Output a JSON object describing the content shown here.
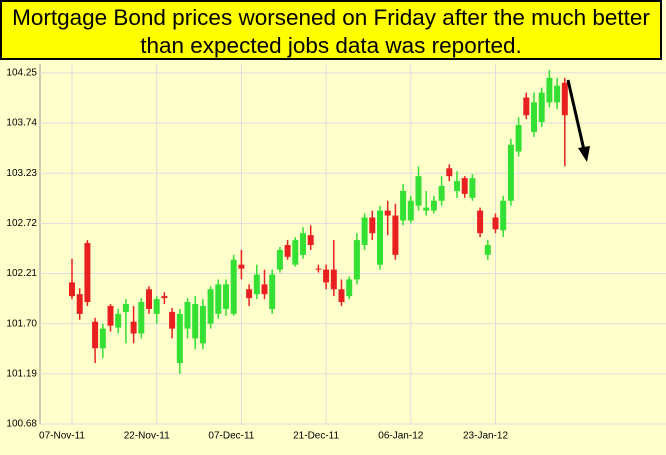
{
  "chart_data": {
    "type": "candlestick",
    "title": "Mortgage Bond prices worsened on Friday after the much better than expected jobs data was reported.",
    "categories": [
      "07-Nov-11",
      null,
      null,
      null,
      null,
      null,
      null,
      null,
      null,
      null,
      null,
      "22-Nov-11",
      null,
      null,
      null,
      null,
      null,
      null,
      null,
      null,
      null,
      null,
      "07-Dec-11",
      null,
      null,
      null,
      null,
      null,
      null,
      null,
      null,
      null,
      null,
      "21-Dec-11",
      null,
      null,
      null,
      null,
      null,
      null,
      null,
      null,
      null,
      null,
      "06-Jan-12",
      null,
      null,
      null,
      null,
      null,
      null,
      null,
      null,
      null,
      null,
      "23-Jan-12",
      null,
      null,
      null,
      null,
      null,
      null,
      null,
      null,
      null
    ],
    "open": [
      102.12,
      102.0,
      102.52,
      101.72,
      101.45,
      101.88,
      101.66,
      101.82,
      101.72,
      101.6,
      102.05,
      101.8,
      101.98,
      101.82,
      101.3,
      101.65,
      101.55,
      101.5,
      101.7,
      101.8,
      101.85,
      101.8,
      102.3,
      102.05,
      102.0,
      102.1,
      101.85,
      102.25,
      102.5,
      102.3,
      102.4,
      102.6,
      102.26,
      102.25,
      102.25,
      102.05,
      101.98,
      102.15,
      102.5,
      102.78,
      102.3,
      102.85,
      102.8,
      102.75,
      102.75,
      102.9,
      102.85,
      102.85,
      102.95,
      103.28,
      103.05,
      103.18,
      102.98,
      102.85,
      102.4,
      102.78,
      102.65,
      102.95,
      103.45,
      104.0,
      103.65,
      103.75,
      103.95,
      103.95,
      104.15
    ],
    "high": [
      102.36,
      102.06,
      102.55,
      101.76,
      101.7,
      101.9,
      101.85,
      101.95,
      101.88,
      101.96,
      102.08,
      101.98,
      102.02,
      101.86,
      101.85,
      101.96,
      101.98,
      101.95,
      102.08,
      102.15,
      102.15,
      102.4,
      102.45,
      102.1,
      102.3,
      102.25,
      102.25,
      102.48,
      102.55,
      102.58,
      102.68,
      102.7,
      102.3,
      102.3,
      102.55,
      102.15,
      102.18,
      102.62,
      102.82,
      102.85,
      102.9,
      102.95,
      102.92,
      103.12,
      103.0,
      103.3,
      103.05,
      103.0,
      103.2,
      103.32,
      103.25,
      103.2,
      103.22,
      102.88,
      102.55,
      102.82,
      103.0,
      103.58,
      103.8,
      104.05,
      104.05,
      104.1,
      104.28,
      104.2,
      104.2
    ],
    "low": [
      101.95,
      101.74,
      101.88,
      101.3,
      101.35,
      101.62,
      101.6,
      101.5,
      101.5,
      101.55,
      101.8,
      101.7,
      101.9,
      101.55,
      101.19,
      101.55,
      101.44,
      101.44,
      101.65,
      101.75,
      101.78,
      101.78,
      102.15,
      101.88,
      101.95,
      101.95,
      101.8,
      102.22,
      102.35,
      102.28,
      102.36,
      102.45,
      102.22,
      102.05,
      101.98,
      101.88,
      101.95,
      102.1,
      102.45,
      102.55,
      102.25,
      102.6,
      102.35,
      102.7,
      102.72,
      102.85,
      102.8,
      102.82,
      102.9,
      103.15,
      102.98,
      102.98,
      102.95,
      102.58,
      102.35,
      102.62,
      102.58,
      102.9,
      103.4,
      103.78,
      103.6,
      103.7,
      103.9,
      103.88,
      103.3
    ],
    "close": [
      101.98,
      101.8,
      101.92,
      101.45,
      101.65,
      101.68,
      101.8,
      101.9,
      101.6,
      101.92,
      101.85,
      101.95,
      101.96,
      101.65,
      101.8,
      101.92,
      101.9,
      101.88,
      102.05,
      102.1,
      102.1,
      102.35,
      102.26,
      101.96,
      102.2,
      102.0,
      102.2,
      102.45,
      102.38,
      102.55,
      102.62,
      102.5,
      102.25,
      102.12,
      102.05,
      101.92,
      102.15,
      102.55,
      102.78,
      102.62,
      102.85,
      102.8,
      102.4,
      103.05,
      102.95,
      103.2,
      102.88,
      102.95,
      103.1,
      103.2,
      103.15,
      103.02,
      103.18,
      102.62,
      102.5,
      102.66,
      102.95,
      103.52,
      103.72,
      103.82,
      103.95,
      104.05,
      104.2,
      104.12,
      103.82
    ],
    "up_color": "#33e033",
    "down_color": "#e82020",
    "ylim": [
      100.68,
      104.3
    ],
    "yticks": [
      100.68,
      101.19,
      {
        "value": 101.7,
        "label": "101.70"
      },
      102.21,
      102.72,
      103.23,
      103.74,
      104.25
    ],
    "grid": true
  }
}
